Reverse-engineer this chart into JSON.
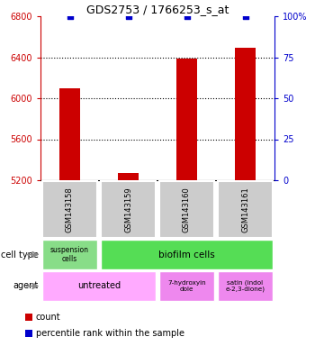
{
  "title": "GDS2753 / 1766253_s_at",
  "samples": [
    "GSM143158",
    "GSM143159",
    "GSM143160",
    "GSM143161"
  ],
  "counts": [
    6100,
    5270,
    6390,
    6490
  ],
  "percentiles": [
    100,
    100,
    100,
    100
  ],
  "ylim_left": [
    5200,
    6800
  ],
  "ylim_right": [
    0,
    100
  ],
  "yticks_left": [
    5200,
    5600,
    6000,
    6400,
    6800
  ],
  "yticks_right": [
    0,
    25,
    50,
    75,
    100
  ],
  "ytick_labels_right": [
    "0",
    "25",
    "50",
    "75",
    "100%"
  ],
  "bar_color": "#cc0000",
  "dot_color": "#0000cc",
  "tick_color_left": "#cc0000",
  "tick_color_right": "#0000cc",
  "sample_box_color": "#cccccc",
  "cell_type_colors": {
    "suspension cells": "#88dd88",
    "biofilm cells": "#55dd55"
  },
  "agent_colors": {
    "untreated": "#ffaaff",
    "7-hydroxyin\ndole": "#ee88ee",
    "satin (indol\ne-2,3-dione)": "#ee88ee"
  },
  "bar_width": 0.35
}
